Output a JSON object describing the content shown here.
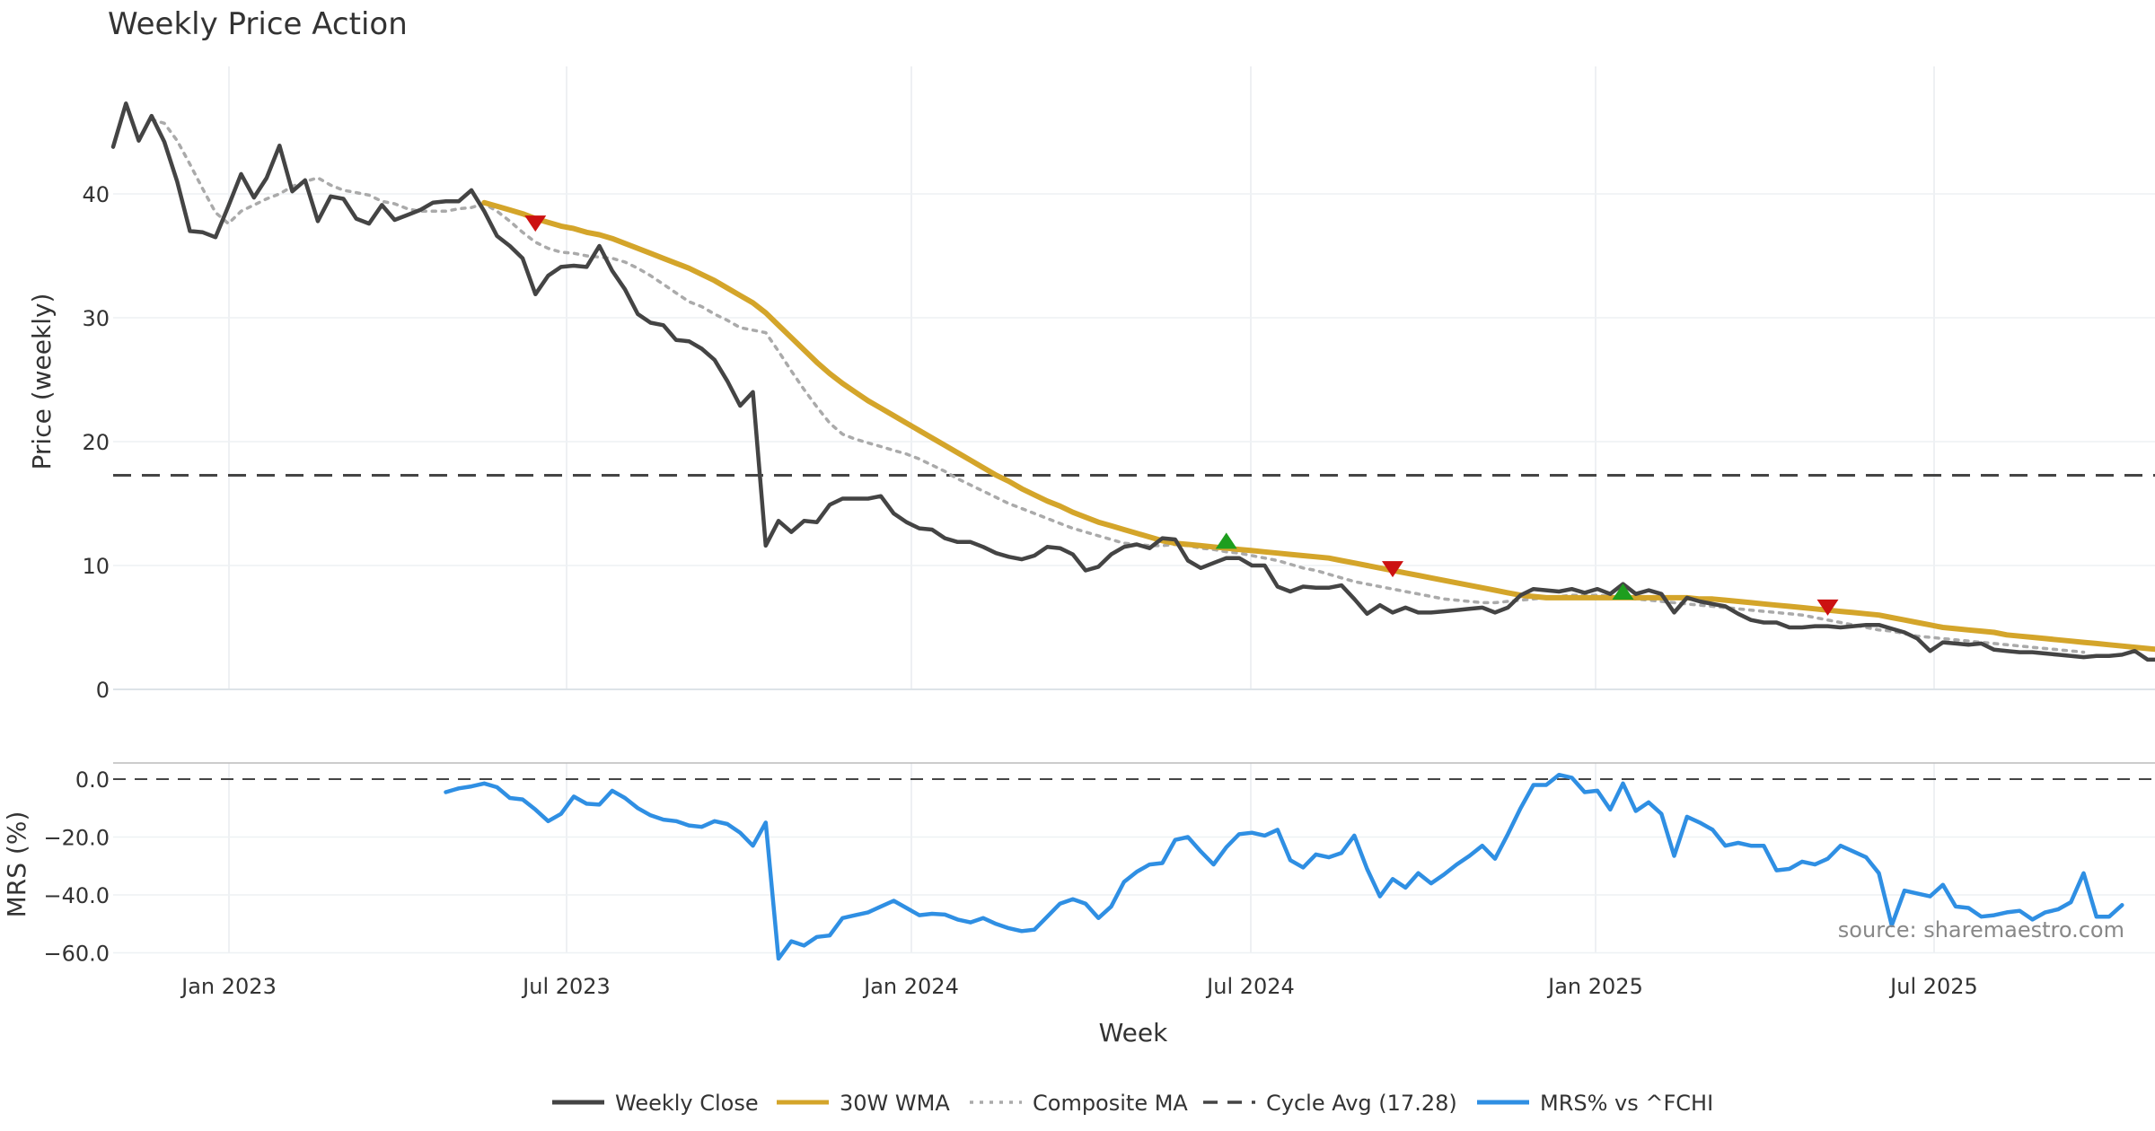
{
  "chart_data": {
    "type": "line",
    "title": "Weekly Price Action",
    "xlabel": "Week",
    "source_note": "source: sharemaestro.com",
    "x_ticks": [
      "Jan 2023",
      "Jul 2023",
      "Jan 2024",
      "Jul 2024",
      "Jan 2025",
      "Jul 2025"
    ],
    "price_panel": {
      "ylabel": "Price (weekly)",
      "ylim": [
        0,
        48
      ],
      "yticks": [
        "0",
        "10",
        "20",
        "30",
        "40"
      ],
      "cycle_avg": 17.28,
      "series": [
        {
          "name": "Weekly Close",
          "color": "#444444",
          "values": [
            43.8,
            47.3,
            44.3,
            46.3,
            44.2,
            41.0,
            37.0,
            36.9,
            36.5,
            39.0,
            41.6,
            39.7,
            41.3,
            43.9,
            40.2,
            41.1,
            37.8,
            39.8,
            39.6,
            38.0,
            37.6,
            39.1,
            37.9,
            38.3,
            38.7,
            39.3,
            39.4,
            39.4,
            40.3,
            38.6,
            36.6,
            35.8,
            34.8,
            31.9,
            33.4,
            34.1,
            34.2,
            34.1,
            35.8,
            33.8,
            32.3,
            30.3,
            29.6,
            29.4,
            28.2,
            28.1,
            27.5,
            26.6,
            24.9,
            22.9,
            24.0,
            11.6,
            13.6,
            12.7,
            13.6,
            13.5,
            14.9,
            15.4,
            15.4,
            15.4,
            15.6,
            14.2,
            13.5,
            13.0,
            12.9,
            12.2,
            11.9,
            11.9,
            11.5,
            11.0,
            10.7,
            10.5,
            10.8,
            11.5,
            11.4,
            10.9,
            9.6,
            9.9,
            10.9,
            11.5,
            11.7,
            11.4,
            12.2,
            12.1,
            10.4,
            9.8,
            10.2,
            10.6,
            10.6,
            10.0,
            10.0,
            8.3,
            7.9,
            8.3,
            8.2,
            8.2,
            8.4,
            7.3,
            6.1,
            6.8,
            6.2,
            6.6,
            6.2,
            6.2,
            6.3,
            6.4,
            6.5,
            6.6,
            6.2,
            6.6,
            7.6,
            8.1,
            8.0,
            7.9,
            8.1,
            7.8,
            8.1,
            7.7,
            8.5,
            7.7,
            8.0,
            7.7,
            6.2,
            7.4,
            7.1,
            6.9,
            6.7,
            6.1,
            5.6,
            5.4,
            5.4,
            5.0,
            5.0,
            5.1,
            5.1,
            5.0,
            5.1,
            5.2,
            5.2,
            4.9,
            4.6,
            4.1,
            3.1,
            3.8,
            3.7,
            3.6,
            3.7,
            3.2,
            3.1,
            3.0,
            3.0,
            2.9,
            2.8,
            2.7,
            2.6,
            2.7,
            2.7,
            2.8,
            3.1,
            2.4,
            2.4,
            2.5
          ]
        },
        {
          "name": "30W WMA",
          "color": "#D4A52A",
          "start_index": 29,
          "values": [
            39.3,
            39.0,
            38.7,
            38.4,
            38.0,
            37.7,
            37.4,
            37.2,
            36.9,
            36.7,
            36.4,
            36.0,
            35.6,
            35.2,
            34.8,
            34.4,
            34.0,
            33.5,
            33.0,
            32.4,
            31.8,
            31.2,
            30.4,
            29.4,
            28.4,
            27.4,
            26.4,
            25.5,
            24.7,
            24.0,
            23.3,
            22.7,
            22.1,
            21.5,
            20.9,
            20.3,
            19.7,
            19.1,
            18.5,
            17.9,
            17.3,
            16.8,
            16.2,
            15.7,
            15.2,
            14.8,
            14.3,
            13.9,
            13.5,
            13.2,
            12.9,
            12.6,
            12.3,
            12.0,
            11.8,
            11.7,
            11.6,
            11.5,
            11.4,
            11.3,
            11.2,
            11.1,
            11.0,
            10.9,
            10.8,
            10.7,
            10.6,
            10.4,
            10.2,
            10.0,
            9.8,
            9.6,
            9.4,
            9.2,
            9.0,
            8.8,
            8.6,
            8.4,
            8.2,
            8.0,
            7.8,
            7.6,
            7.5,
            7.4,
            7.4,
            7.4,
            7.4,
            7.4,
            7.4,
            7.4,
            7.4,
            7.4,
            7.4,
            7.4,
            7.4,
            7.3,
            7.3,
            7.2,
            7.1,
            7.0,
            6.9,
            6.8,
            6.7,
            6.6,
            6.5,
            6.4,
            6.3,
            6.2,
            6.1,
            6.0,
            5.8,
            5.6,
            5.4,
            5.2,
            5.0,
            4.9,
            4.8,
            4.7,
            4.6,
            4.4,
            4.3,
            4.2,
            4.1,
            4.0,
            3.9,
            3.8,
            3.7,
            3.6,
            3.5,
            3.4,
            3.3,
            3.2,
            3.1
          ]
        },
        {
          "name": "Composite MA",
          "color": "#AAAAAA",
          "start_index": 3,
          "values": [
            46.0,
            45.7,
            44.3,
            42.4,
            40.4,
            38.5,
            37.6,
            38.6,
            39.1,
            39.6,
            40.0,
            40.6,
            41.0,
            41.3,
            40.7,
            40.3,
            40.1,
            39.9,
            39.4,
            39.2,
            38.8,
            38.6,
            38.6,
            38.6,
            38.8,
            38.9,
            39.2,
            38.6,
            37.8,
            36.9,
            36.1,
            35.6,
            35.3,
            35.2,
            35.0,
            34.9,
            34.8,
            34.5,
            34.0,
            33.4,
            32.7,
            32.0,
            31.3,
            30.9,
            30.3,
            29.8,
            29.2,
            29.0,
            28.8,
            27.3,
            25.7,
            24.2,
            22.8,
            21.5,
            20.6,
            20.2,
            19.9,
            19.6,
            19.3,
            19.0,
            18.6,
            18.1,
            17.6,
            17.0,
            16.5,
            16.0,
            15.5,
            15.0,
            14.6,
            14.2,
            13.8,
            13.4,
            13.0,
            12.7,
            12.4,
            12.1,
            11.8,
            11.7,
            11.6,
            11.6,
            11.7,
            11.6,
            11.4,
            11.3,
            11.1,
            11.0,
            10.8,
            10.6,
            10.4,
            10.1,
            9.8,
            9.6,
            9.3,
            9.0,
            8.7,
            8.5,
            8.3,
            8.1,
            7.9,
            7.7,
            7.5,
            7.3,
            7.2,
            7.1,
            7.0,
            7.0,
            7.1,
            7.2,
            7.3,
            7.4,
            7.5,
            7.6,
            7.6,
            7.6,
            7.5,
            7.4,
            7.3,
            7.2,
            7.1,
            7.0,
            6.9,
            6.8,
            6.7,
            6.6,
            6.5,
            6.4,
            6.3,
            6.2,
            6.1,
            6.0,
            5.8,
            5.6,
            5.4,
            5.2,
            5.0,
            4.8,
            4.7,
            4.5,
            4.3,
            4.2,
            4.1,
            4.0,
            3.9,
            3.8,
            3.7,
            3.6,
            3.5,
            3.4,
            3.3,
            3.2,
            3.1,
            3.0
          ]
        }
      ],
      "signals": [
        {
          "type": "sell",
          "index": 33,
          "value": 37.6,
          "color": "#CC1111"
        },
        {
          "type": "buy",
          "index": 87,
          "value": 12.0,
          "color": "#1E9E1E"
        },
        {
          "type": "sell",
          "index": 100,
          "value": 9.7,
          "color": "#CC1111"
        },
        {
          "type": "buy",
          "index": 118,
          "value": 7.9,
          "color": "#1E9E1E"
        },
        {
          "type": "sell",
          "index": 134,
          "value": 6.6,
          "color": "#CC1111"
        }
      ]
    },
    "mrs_panel": {
      "ylabel": "MRS (%)",
      "ylim": [
        -62,
        3
      ],
      "yticks": [
        "0.0",
        "−20.0",
        "−40.0",
        "−60.0"
      ],
      "series": [
        {
          "name": "MRS% vs ^FCHI",
          "color": "#2F8FE3",
          "start_index": 26,
          "values": [
            -4.5,
            -3.2,
            -2.5,
            -1.5,
            -2.8,
            -6.5,
            -7.0,
            -10.5,
            -14.5,
            -12.0,
            -6.0,
            -8.5,
            -8.8,
            -4.0,
            -6.5,
            -10.0,
            -12.5,
            -14.0,
            -14.5,
            -16.0,
            -16.5,
            -14.5,
            -15.5,
            -18.5,
            -23.0,
            -15.0,
            -62.0,
            -56.0,
            -57.5,
            -54.5,
            -54.0,
            -48.0,
            -47.0,
            -46.0,
            -44.0,
            -42.0,
            -44.5,
            -47.0,
            -46.5,
            -46.8,
            -48.5,
            -49.5,
            -48.0,
            -50.0,
            -51.5,
            -52.5,
            -52.0,
            -47.5,
            -43.0,
            -41.5,
            -43.0,
            -48.0,
            -44.0,
            -35.5,
            -32.0,
            -29.5,
            -29.0,
            -21.0,
            -20.0,
            -25.0,
            -29.5,
            -23.5,
            -19.0,
            -18.5,
            -19.5,
            -17.5,
            -28.0,
            -30.5,
            -26.0,
            -27.0,
            -25.5,
            -19.5,
            -31.0,
            -40.5,
            -34.5,
            -37.5,
            -32.5,
            -36.0,
            -33.0,
            -29.5,
            -26.5,
            -23.0,
            -27.5,
            -19.0,
            -10.0,
            -2.0,
            -2.0,
            1.5,
            0.5,
            -4.5,
            -4.0,
            -10.5,
            -1.5,
            -11.0,
            -8.0,
            -12.0,
            -26.5,
            -13.0,
            -15.0,
            -17.5,
            -23.0,
            -22.0,
            -23.0,
            -23.0,
            -31.5,
            -31.0,
            -28.5,
            -29.5,
            -27.5,
            -23.0,
            -25.0,
            -27.0,
            -32.5,
            -50.5,
            -38.5,
            -39.5,
            -40.5,
            -36.5,
            -44.0,
            -44.5,
            -47.5,
            -47.0,
            -46.0,
            -45.5,
            -48.5,
            -46.0,
            -45.0,
            -42.5,
            -32.5,
            -47.5,
            -47.5,
            -43.5
          ]
        }
      ]
    },
    "legend": [
      {
        "label": "Weekly Close",
        "color": "#444444",
        "style": "solid"
      },
      {
        "label": "30W WMA",
        "color": "#D4A52A",
        "style": "solid"
      },
      {
        "label": "Composite MA",
        "color": "#AAAAAA",
        "style": "dotted"
      },
      {
        "label": "Cycle Avg (17.28)",
        "color": "#444444",
        "style": "dashed"
      },
      {
        "label": "MRS% vs ^FCHI",
        "color": "#2F8FE3",
        "style": "solid"
      }
    ]
  }
}
